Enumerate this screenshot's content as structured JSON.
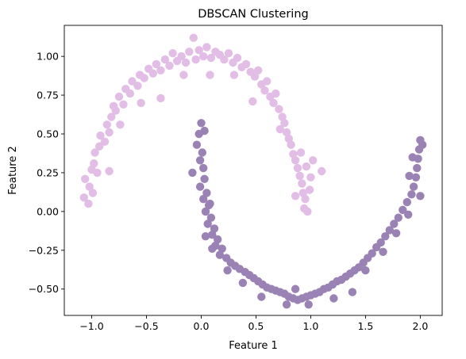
{
  "chart_data": {
    "type": "scatter",
    "title": "DBSCAN Clustering",
    "xlabel": "Feature 1",
    "ylabel": "Feature 2",
    "xlim": [
      -1.25,
      2.2
    ],
    "ylim": [
      -0.67,
      1.2
    ],
    "xticks": [
      "−1.0",
      "−0.5",
      "0.0",
      "0.5",
      "1.0",
      "1.5",
      "2.0"
    ],
    "xtick_values": [
      -1.0,
      -0.5,
      0.0,
      0.5,
      1.0,
      1.5,
      2.0
    ],
    "yticks": [
      "−0.50",
      "−0.25",
      "0.00",
      "0.25",
      "0.50",
      "0.75",
      "1.00"
    ],
    "ytick_values": [
      -0.5,
      -0.25,
      0.0,
      0.25,
      0.5,
      0.75,
      1.0
    ],
    "grid": false,
    "legend": "none",
    "series": [
      {
        "color": "#e2bde6",
        "points": [
          [
            -1.03,
            0.05
          ],
          [
            -1.07,
            0.09
          ],
          [
            -1.02,
            0.16
          ],
          [
            -1.06,
            0.21
          ],
          [
            -0.99,
            0.12
          ],
          [
            -1.0,
            0.27
          ],
          [
            -0.98,
            0.31
          ],
          [
            -0.95,
            0.25
          ],
          [
            -0.97,
            0.38
          ],
          [
            -0.93,
            0.42
          ],
          [
            -0.92,
            0.49
          ],
          [
            -0.88,
            0.45
          ],
          [
            -0.86,
            0.56
          ],
          [
            -0.84,
            0.51
          ],
          [
            -0.82,
            0.61
          ],
          [
            -0.78,
            0.65
          ],
          [
            -0.8,
            0.68
          ],
          [
            -0.75,
            0.74
          ],
          [
            -0.71,
            0.69
          ],
          [
            -0.69,
            0.79
          ],
          [
            -0.65,
            0.76
          ],
          [
            -0.63,
            0.84
          ],
          [
            -0.58,
            0.81
          ],
          [
            -0.56,
            0.88
          ],
          [
            -0.52,
            0.86
          ],
          [
            -0.48,
            0.92
          ],
          [
            -0.44,
            0.89
          ],
          [
            -0.41,
            0.95
          ],
          [
            -0.37,
            0.91
          ],
          [
            -0.33,
            0.98
          ],
          [
            -0.29,
            0.94
          ],
          [
            -0.26,
            1.02
          ],
          [
            -0.22,
            0.97
          ],
          [
            -0.18,
            1.0
          ],
          [
            -0.14,
            0.96
          ],
          [
            -0.11,
            1.03
          ],
          [
            -0.07,
            1.12
          ],
          [
            -0.05,
            0.98
          ],
          [
            -0.02,
            1.04
          ],
          [
            0.02,
            1.0
          ],
          [
            0.05,
            1.06
          ],
          [
            0.09,
            0.99
          ],
          [
            0.13,
            1.03
          ],
          [
            0.17,
            1.01
          ],
          [
            0.21,
            0.98
          ],
          [
            0.25,
            1.02
          ],
          [
            0.29,
            0.96
          ],
          [
            0.33,
            0.99
          ],
          [
            0.37,
            0.93
          ],
          [
            0.41,
            0.95
          ],
          [
            0.45,
            0.9
          ],
          [
            0.49,
            0.87
          ],
          [
            0.52,
            0.91
          ],
          [
            0.55,
            0.82
          ],
          [
            0.58,
            0.78
          ],
          [
            0.6,
            0.84
          ],
          [
            0.63,
            0.74
          ],
          [
            0.66,
            0.7
          ],
          [
            0.68,
            0.76
          ],
          [
            0.71,
            0.66
          ],
          [
            0.74,
            0.61
          ],
          [
            0.76,
            0.57
          ],
          [
            0.78,
            0.51
          ],
          [
            0.8,
            0.47
          ],
          [
            0.82,
            0.43
          ],
          [
            0.84,
            0.37
          ],
          [
            0.86,
            0.33
          ],
          [
            0.88,
            0.28
          ],
          [
            0.9,
            0.23
          ],
          [
            0.92,
            0.18
          ],
          [
            0.93,
            0.12
          ],
          [
            0.95,
            0.08
          ],
          [
            0.94,
            0.02
          ],
          [
            0.97,
            0.0
          ],
          [
            0.99,
            0.14
          ],
          [
            1.0,
            0.22
          ],
          [
            0.96,
            0.29
          ],
          [
            1.02,
            0.33
          ],
          [
            1.1,
            0.26
          ],
          [
            0.91,
            0.38
          ],
          [
            -0.84,
            0.26
          ],
          [
            -0.74,
            0.56
          ],
          [
            -0.55,
            0.7
          ],
          [
            -0.37,
            0.73
          ],
          [
            -0.16,
            0.88
          ],
          [
            0.08,
            0.88
          ],
          [
            0.3,
            0.88
          ],
          [
            0.47,
            0.71
          ],
          [
            0.72,
            0.53
          ],
          [
            0.86,
            0.1
          ]
        ]
      },
      {
        "color": "#9b82b5",
        "points": [
          [
            0.0,
            0.57
          ],
          [
            -0.02,
            0.5
          ],
          [
            -0.04,
            0.43
          ],
          [
            0.01,
            0.38
          ],
          [
            -0.01,
            0.33
          ],
          [
            0.02,
            0.28
          ],
          [
            -0.08,
            0.25
          ],
          [
            0.03,
            0.21
          ],
          [
            -0.01,
            0.16
          ],
          [
            0.05,
            0.12
          ],
          [
            0.02,
            0.08
          ],
          [
            0.07,
            0.04
          ],
          [
            0.04,
            0.0
          ],
          [
            0.09,
            -0.04
          ],
          [
            0.06,
            -0.08
          ],
          [
            0.12,
            -0.11
          ],
          [
            0.1,
            -0.15
          ],
          [
            0.15,
            -0.18
          ],
          [
            0.13,
            -0.22
          ],
          [
            0.19,
            -0.24
          ],
          [
            0.17,
            -0.28
          ],
          [
            0.23,
            -0.3
          ],
          [
            0.27,
            -0.33
          ],
          [
            0.31,
            -0.35
          ],
          [
            0.35,
            -0.37
          ],
          [
            0.4,
            -0.39
          ],
          [
            0.44,
            -0.41
          ],
          [
            0.48,
            -0.43
          ],
          [
            0.52,
            -0.45
          ],
          [
            0.56,
            -0.47
          ],
          [
            0.6,
            -0.49
          ],
          [
            0.64,
            -0.5
          ],
          [
            0.68,
            -0.51
          ],
          [
            0.72,
            -0.52
          ],
          [
            0.76,
            -0.53
          ],
          [
            0.8,
            -0.55
          ],
          [
            0.84,
            -0.56
          ],
          [
            0.88,
            -0.57
          ],
          [
            0.92,
            -0.56
          ],
          [
            0.96,
            -0.55
          ],
          [
            1.0,
            -0.54
          ],
          [
            1.04,
            -0.53
          ],
          [
            1.08,
            -0.52
          ],
          [
            1.12,
            -0.5
          ],
          [
            1.16,
            -0.49
          ],
          [
            1.2,
            -0.47
          ],
          [
            1.24,
            -0.45
          ],
          [
            1.28,
            -0.44
          ],
          [
            1.32,
            -0.42
          ],
          [
            1.36,
            -0.4
          ],
          [
            1.4,
            -0.38
          ],
          [
            1.44,
            -0.36
          ],
          [
            1.48,
            -0.33
          ],
          [
            1.52,
            -0.3
          ],
          [
            1.56,
            -0.27
          ],
          [
            1.6,
            -0.23
          ],
          [
            1.64,
            -0.2
          ],
          [
            1.68,
            -0.16
          ],
          [
            1.72,
            -0.12
          ],
          [
            1.76,
            -0.08
          ],
          [
            1.8,
            -0.04
          ],
          [
            1.84,
            0.01
          ],
          [
            1.88,
            0.06
          ],
          [
            1.92,
            0.11
          ],
          [
            1.94,
            0.16
          ],
          [
            1.96,
            0.22
          ],
          [
            1.97,
            0.28
          ],
          [
            1.98,
            0.34
          ],
          [
            1.99,
            0.4
          ],
          [
            2.0,
            0.46
          ],
          [
            2.02,
            0.43
          ],
          [
            1.93,
            0.35
          ],
          [
            1.9,
            0.23
          ],
          [
            2.0,
            0.1
          ],
          [
            1.89,
            -0.02
          ],
          [
            1.78,
            -0.14
          ],
          [
            1.66,
            -0.26
          ],
          [
            1.5,
            -0.38
          ],
          [
            1.38,
            -0.52
          ],
          [
            1.21,
            -0.56
          ],
          [
            0.98,
            -0.6
          ],
          [
            0.78,
            -0.6
          ],
          [
            0.55,
            -0.55
          ],
          [
            0.38,
            -0.46
          ],
          [
            0.24,
            -0.38
          ],
          [
            0.1,
            -0.24
          ],
          [
            0.04,
            -0.16
          ],
          [
            0.08,
            0.05
          ],
          [
            0.03,
            0.52
          ],
          [
            0.86,
            -0.5
          ]
        ]
      }
    ]
  }
}
